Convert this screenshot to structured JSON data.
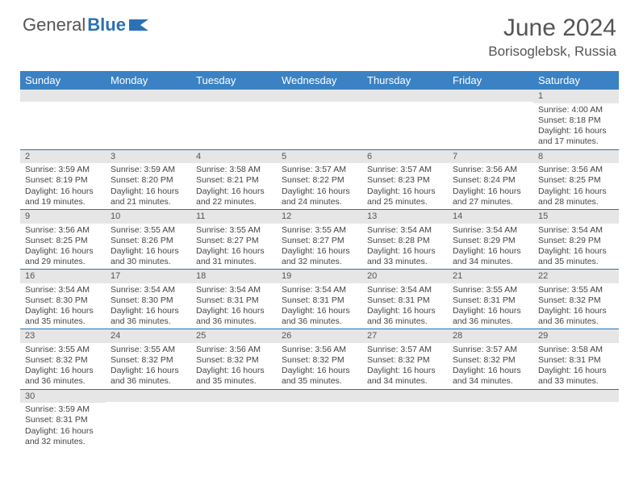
{
  "brand": {
    "part1": "General",
    "part2": "Blue"
  },
  "title": "June 2024",
  "location": "Borisoglebsk, Russia",
  "colors": {
    "header_bg": "#3b82c4",
    "header_text": "#ffffff",
    "border": "#2a72b5",
    "daynum_bg": "#e6e6e6",
    "body_text": "#444444",
    "title_text": "#555555",
    "brand_accent": "#2a72b5"
  },
  "weekdays": [
    "Sunday",
    "Monday",
    "Tuesday",
    "Wednesday",
    "Thursday",
    "Friday",
    "Saturday"
  ],
  "weeks": [
    [
      {
        "n": "",
        "lines": [
          "",
          "",
          "",
          ""
        ]
      },
      {
        "n": "",
        "lines": [
          "",
          "",
          "",
          ""
        ]
      },
      {
        "n": "",
        "lines": [
          "",
          "",
          "",
          ""
        ]
      },
      {
        "n": "",
        "lines": [
          "",
          "",
          "",
          ""
        ]
      },
      {
        "n": "",
        "lines": [
          "",
          "",
          "",
          ""
        ]
      },
      {
        "n": "",
        "lines": [
          "",
          "",
          "",
          ""
        ]
      },
      {
        "n": "1",
        "lines": [
          "Sunrise: 4:00 AM",
          "Sunset: 8:18 PM",
          "Daylight: 16 hours",
          "and 17 minutes."
        ]
      }
    ],
    [
      {
        "n": "2",
        "lines": [
          "Sunrise: 3:59 AM",
          "Sunset: 8:19 PM",
          "Daylight: 16 hours",
          "and 19 minutes."
        ]
      },
      {
        "n": "3",
        "lines": [
          "Sunrise: 3:59 AM",
          "Sunset: 8:20 PM",
          "Daylight: 16 hours",
          "and 21 minutes."
        ]
      },
      {
        "n": "4",
        "lines": [
          "Sunrise: 3:58 AM",
          "Sunset: 8:21 PM",
          "Daylight: 16 hours",
          "and 22 minutes."
        ]
      },
      {
        "n": "5",
        "lines": [
          "Sunrise: 3:57 AM",
          "Sunset: 8:22 PM",
          "Daylight: 16 hours",
          "and 24 minutes."
        ]
      },
      {
        "n": "6",
        "lines": [
          "Sunrise: 3:57 AM",
          "Sunset: 8:23 PM",
          "Daylight: 16 hours",
          "and 25 minutes."
        ]
      },
      {
        "n": "7",
        "lines": [
          "Sunrise: 3:56 AM",
          "Sunset: 8:24 PM",
          "Daylight: 16 hours",
          "and 27 minutes."
        ]
      },
      {
        "n": "8",
        "lines": [
          "Sunrise: 3:56 AM",
          "Sunset: 8:25 PM",
          "Daylight: 16 hours",
          "and 28 minutes."
        ]
      }
    ],
    [
      {
        "n": "9",
        "lines": [
          "Sunrise: 3:56 AM",
          "Sunset: 8:25 PM",
          "Daylight: 16 hours",
          "and 29 minutes."
        ]
      },
      {
        "n": "10",
        "lines": [
          "Sunrise: 3:55 AM",
          "Sunset: 8:26 PM",
          "Daylight: 16 hours",
          "and 30 minutes."
        ]
      },
      {
        "n": "11",
        "lines": [
          "Sunrise: 3:55 AM",
          "Sunset: 8:27 PM",
          "Daylight: 16 hours",
          "and 31 minutes."
        ]
      },
      {
        "n": "12",
        "lines": [
          "Sunrise: 3:55 AM",
          "Sunset: 8:27 PM",
          "Daylight: 16 hours",
          "and 32 minutes."
        ]
      },
      {
        "n": "13",
        "lines": [
          "Sunrise: 3:54 AM",
          "Sunset: 8:28 PM",
          "Daylight: 16 hours",
          "and 33 minutes."
        ]
      },
      {
        "n": "14",
        "lines": [
          "Sunrise: 3:54 AM",
          "Sunset: 8:29 PM",
          "Daylight: 16 hours",
          "and 34 minutes."
        ]
      },
      {
        "n": "15",
        "lines": [
          "Sunrise: 3:54 AM",
          "Sunset: 8:29 PM",
          "Daylight: 16 hours",
          "and 35 minutes."
        ]
      }
    ],
    [
      {
        "n": "16",
        "lines": [
          "Sunrise: 3:54 AM",
          "Sunset: 8:30 PM",
          "Daylight: 16 hours",
          "and 35 minutes."
        ]
      },
      {
        "n": "17",
        "lines": [
          "Sunrise: 3:54 AM",
          "Sunset: 8:30 PM",
          "Daylight: 16 hours",
          "and 36 minutes."
        ]
      },
      {
        "n": "18",
        "lines": [
          "Sunrise: 3:54 AM",
          "Sunset: 8:31 PM",
          "Daylight: 16 hours",
          "and 36 minutes."
        ]
      },
      {
        "n": "19",
        "lines": [
          "Sunrise: 3:54 AM",
          "Sunset: 8:31 PM",
          "Daylight: 16 hours",
          "and 36 minutes."
        ]
      },
      {
        "n": "20",
        "lines": [
          "Sunrise: 3:54 AM",
          "Sunset: 8:31 PM",
          "Daylight: 16 hours",
          "and 36 minutes."
        ]
      },
      {
        "n": "21",
        "lines": [
          "Sunrise: 3:55 AM",
          "Sunset: 8:31 PM",
          "Daylight: 16 hours",
          "and 36 minutes."
        ]
      },
      {
        "n": "22",
        "lines": [
          "Sunrise: 3:55 AM",
          "Sunset: 8:32 PM",
          "Daylight: 16 hours",
          "and 36 minutes."
        ]
      }
    ],
    [
      {
        "n": "23",
        "lines": [
          "Sunrise: 3:55 AM",
          "Sunset: 8:32 PM",
          "Daylight: 16 hours",
          "and 36 minutes."
        ]
      },
      {
        "n": "24",
        "lines": [
          "Sunrise: 3:55 AM",
          "Sunset: 8:32 PM",
          "Daylight: 16 hours",
          "and 36 minutes."
        ]
      },
      {
        "n": "25",
        "lines": [
          "Sunrise: 3:56 AM",
          "Sunset: 8:32 PM",
          "Daylight: 16 hours",
          "and 35 minutes."
        ]
      },
      {
        "n": "26",
        "lines": [
          "Sunrise: 3:56 AM",
          "Sunset: 8:32 PM",
          "Daylight: 16 hours",
          "and 35 minutes."
        ]
      },
      {
        "n": "27",
        "lines": [
          "Sunrise: 3:57 AM",
          "Sunset: 8:32 PM",
          "Daylight: 16 hours",
          "and 34 minutes."
        ]
      },
      {
        "n": "28",
        "lines": [
          "Sunrise: 3:57 AM",
          "Sunset: 8:32 PM",
          "Daylight: 16 hours",
          "and 34 minutes."
        ]
      },
      {
        "n": "29",
        "lines": [
          "Sunrise: 3:58 AM",
          "Sunset: 8:31 PM",
          "Daylight: 16 hours",
          "and 33 minutes."
        ]
      }
    ],
    [
      {
        "n": "30",
        "lines": [
          "Sunrise: 3:59 AM",
          "Sunset: 8:31 PM",
          "Daylight: 16 hours",
          "and 32 minutes."
        ]
      },
      {
        "n": "",
        "lines": [
          "",
          "",
          "",
          ""
        ]
      },
      {
        "n": "",
        "lines": [
          "",
          "",
          "",
          ""
        ]
      },
      {
        "n": "",
        "lines": [
          "",
          "",
          "",
          ""
        ]
      },
      {
        "n": "",
        "lines": [
          "",
          "",
          "",
          ""
        ]
      },
      {
        "n": "",
        "lines": [
          "",
          "",
          "",
          ""
        ]
      },
      {
        "n": "",
        "lines": [
          "",
          "",
          "",
          ""
        ]
      }
    ]
  ]
}
